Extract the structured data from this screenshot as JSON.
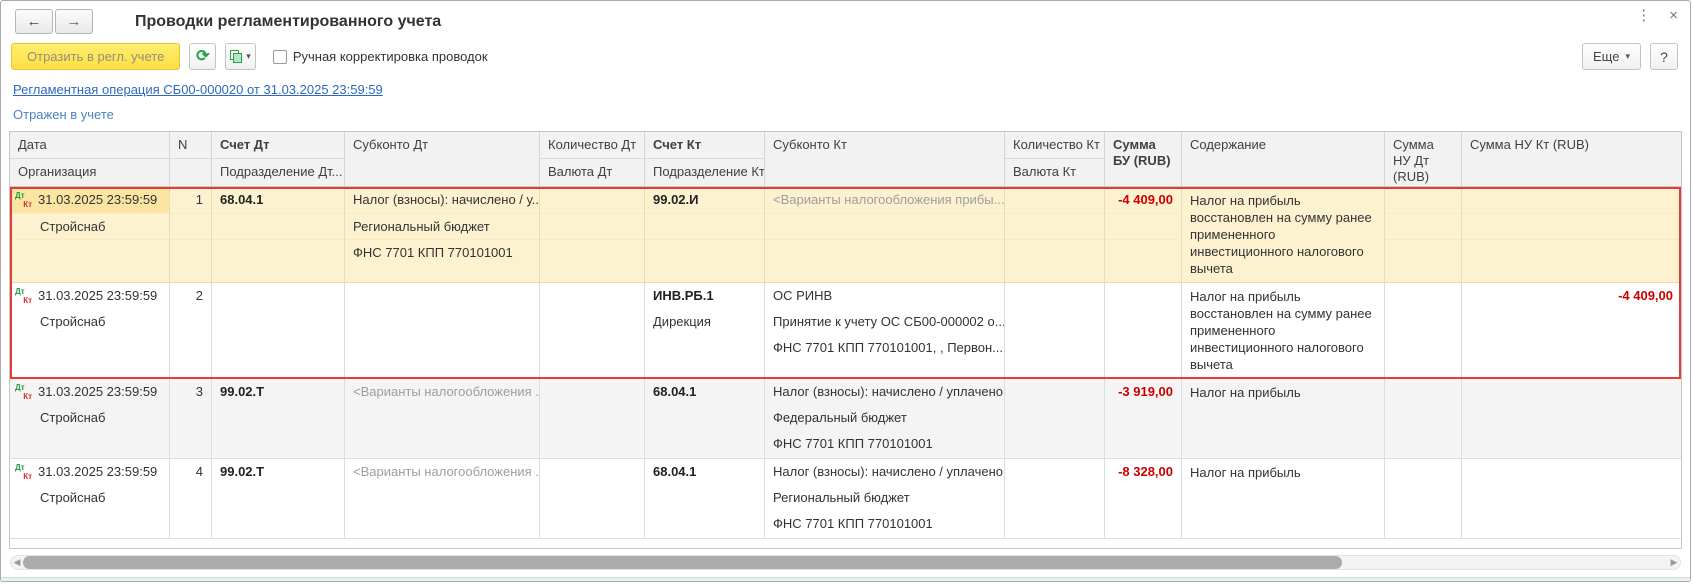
{
  "window": {
    "title": "Проводки регламентированного учета"
  },
  "icons": {
    "back": "←",
    "forward": "→",
    "refresh": "⟳",
    "dropdown": "▾",
    "menu": "⋮",
    "close": "×",
    "scroll_left": "◀",
    "scroll_right": "▶"
  },
  "toolbar": {
    "reflect_button": "Отразить в регл. учете",
    "manual_adjustment_label": "Ручная корректировка проводок",
    "more_button": "Еще",
    "help_button": "?"
  },
  "document_link": "Регламентная операция СБ00-000020 от 31.03.2025 23:59:59",
  "status": "Отражен в учете",
  "table": {
    "headers": {
      "date": "Дата",
      "org": "Организация",
      "n": "N",
      "account_dt": "Счет Дт",
      "dept_dt": "Подразделение Дт...",
      "subconto_dt": "Субконто Дт",
      "qty_dt": "Количество Дт",
      "cur_dt": "Валюта Дт",
      "account_kt": "Счет Кт",
      "dept_kt": "Подразделение Кт...",
      "subconto_kt": "Субконто Кт",
      "qty_kt": "Количество Кт",
      "cur_kt": "Валюта Кт",
      "amount_bu": "Сумма БУ (RUB)",
      "description": "Содержание",
      "amount_nu_dt": "Сумма НУ Дт (RUB)",
      "amount_nu_kt": "Сумма НУ Кт (RUB)"
    },
    "rows": [
      {
        "current": true,
        "selected": true,
        "shaded": false,
        "date": "31.03.2025 23:59:59",
        "org": "Стройснаб",
        "n": "1",
        "account_dt": "68.04.1",
        "dept_dt": "",
        "subconto_dt": [
          {
            "text": "Налог (взносы): начислено / у...",
            "muted": false
          },
          {
            "text": "Региональный бюджет",
            "muted": false
          },
          {
            "text": "ФНС 7701 КПП 770101001",
            "muted": false
          }
        ],
        "qty_dt": "",
        "cur_dt": "",
        "account_kt": "99.02.И",
        "dept_kt": "",
        "subconto_kt": [
          {
            "text": "<Варианты налогообложения прибы...",
            "muted": true
          }
        ],
        "qty_kt": "",
        "cur_kt": "",
        "amount_bu": "-4 409,00",
        "description": "Налог на прибыль восстановлен на сумму ранее примененного инвестиционного налогового вычета",
        "amount_nu_dt": "",
        "amount_nu_kt": ""
      },
      {
        "current": false,
        "selected": true,
        "shaded": false,
        "date": "31.03.2025 23:59:59",
        "org": "Стройснаб",
        "n": "2",
        "account_dt": "",
        "dept_dt": "",
        "subconto_dt": [],
        "qty_dt": "",
        "cur_dt": "",
        "account_kt": "ИНВ.РБ.1",
        "dept_kt": "Дирекция",
        "subconto_kt": [
          {
            "text": "ОС РИНВ",
            "muted": false
          },
          {
            "text": "Принятие к учету ОС СБ00-000002 о...",
            "muted": false
          },
          {
            "text": "ФНС 7701 КПП 770101001, , Первон...",
            "muted": false
          }
        ],
        "qty_kt": "",
        "cur_kt": "",
        "amount_bu": "",
        "description": "Налог на прибыль восстановлен на сумму ранее примененного инвестиционного налогового вычета",
        "amount_nu_dt": "",
        "amount_nu_kt": "-4 409,00"
      },
      {
        "current": false,
        "selected": false,
        "shaded": true,
        "date": "31.03.2025 23:59:59",
        "org": "Стройснаб",
        "n": "3",
        "account_dt": "99.02.Т",
        "dept_dt": "",
        "subconto_dt": [
          {
            "text": "<Варианты налогообложения ...",
            "muted": true
          }
        ],
        "qty_dt": "",
        "cur_dt": "",
        "account_kt": "68.04.1",
        "dept_kt": "",
        "subconto_kt": [
          {
            "text": "Налог (взносы): начислено / уплачено",
            "muted": false
          },
          {
            "text": "Федеральный бюджет",
            "muted": false
          },
          {
            "text": "ФНС 7701 КПП 770101001",
            "muted": false
          }
        ],
        "qty_kt": "",
        "cur_kt": "",
        "amount_bu": "-3 919,00",
        "description": "Налог на прибыль",
        "amount_nu_dt": "",
        "amount_nu_kt": ""
      },
      {
        "current": false,
        "selected": false,
        "shaded": false,
        "date": "31.03.2025 23:59:59",
        "org": "Стройснаб",
        "n": "4",
        "account_dt": "99.02.Т",
        "dept_dt": "",
        "subconto_dt": [
          {
            "text": "<Варианты налогообложения ...",
            "muted": true
          }
        ],
        "qty_dt": "",
        "cur_dt": "",
        "account_kt": "68.04.1",
        "dept_kt": "",
        "subconto_kt": [
          {
            "text": "Налог (взносы): начислено / уплачено",
            "muted": false
          },
          {
            "text": "Региональный бюджет",
            "muted": false
          },
          {
            "text": "ФНС 7701 КПП 770101001",
            "muted": false
          }
        ],
        "qty_kt": "",
        "cur_kt": "",
        "amount_bu": "-8 328,00",
        "description": "Налог на прибыль",
        "amount_nu_dt": "",
        "amount_nu_kt": ""
      }
    ]
  }
}
